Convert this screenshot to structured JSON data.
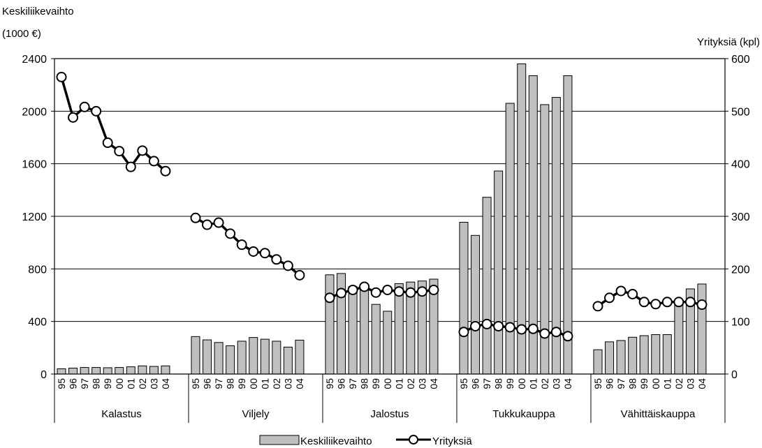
{
  "chart_data": {
    "type": "bar",
    "left_axis": {
      "title_line1": "Keskiliikevaihto",
      "title_line2": "(1000 €)",
      "ylim": [
        0,
        2400
      ],
      "ticks": [
        0,
        400,
        800,
        1200,
        1600,
        2000,
        2400
      ]
    },
    "right_axis": {
      "title": "Yrityksiä (kpl)",
      "ylim": [
        0,
        600
      ],
      "ticks": [
        0,
        100,
        200,
        300,
        400,
        500,
        600
      ]
    },
    "groups": [
      {
        "name": "Kalastus",
        "years": [
          "95",
          "96",
          "97",
          "98",
          "99",
          "00",
          "01",
          "02",
          "03",
          "04"
        ],
        "keskiliikevaihto": [
          40,
          45,
          50,
          50,
          48,
          50,
          55,
          62,
          58,
          62
        ],
        "yrityksia": [
          565,
          488,
          508,
          500,
          440,
          424,
          394,
          425,
          405,
          386
        ]
      },
      {
        "name": "Viljely",
        "years": [
          "95",
          "96",
          "97",
          "98",
          "99",
          "00",
          "01",
          "02",
          "03",
          "04"
        ],
        "keskiliikevaihto": [
          285,
          260,
          240,
          215,
          250,
          278,
          265,
          250,
          205,
          258
        ],
        "yrityksia": [
          297,
          284,
          288,
          267,
          246,
          233,
          230,
          218,
          206,
          188
        ]
      },
      {
        "name": "Jalostus",
        "years": [
          "95",
          "96",
          "97",
          "98",
          "99",
          "00",
          "01",
          "02",
          "03",
          "04"
        ],
        "keskiliikevaihto": [
          755,
          765,
          665,
          680,
          530,
          478,
          688,
          700,
          708,
          722
        ],
        "yrityksia": [
          145,
          154,
          160,
          166,
          155,
          160,
          157,
          155,
          157,
          160
        ]
      },
      {
        "name": "Tukkukauppa",
        "years": [
          "95",
          "96",
          "97",
          "98",
          "99",
          "00",
          "01",
          "02",
          "03",
          "04"
        ],
        "keskiliikevaihto": [
          1155,
          1055,
          1345,
          1545,
          2060,
          2360,
          2270,
          2050,
          2105,
          2270
        ],
        "yrityksia": [
          80,
          91,
          95,
          91,
          89,
          85,
          86,
          77,
          80,
          72
        ]
      },
      {
        "name": "Vähittäiskauppa",
        "years": [
          "95",
          "96",
          "97",
          "98",
          "99",
          "00",
          "01",
          "02",
          "03",
          "04"
        ],
        "keskiliikevaihto": [
          185,
          245,
          255,
          280,
          292,
          300,
          300,
          545,
          648,
          685
        ],
        "yrityksia": [
          129,
          145,
          158,
          152,
          137,
          133,
          137,
          137,
          137,
          132
        ]
      }
    ],
    "legend": {
      "bar_label": "Keskiliikevaihto",
      "line_label": "Yrityksiä",
      "placement": "bottom"
    },
    "series_colors": {
      "bar_fill": "#c0c0c0",
      "bar_stroke": "#000000",
      "line": "#000000",
      "marker_fill": "#ffffff"
    },
    "grid": "horizontal"
  }
}
